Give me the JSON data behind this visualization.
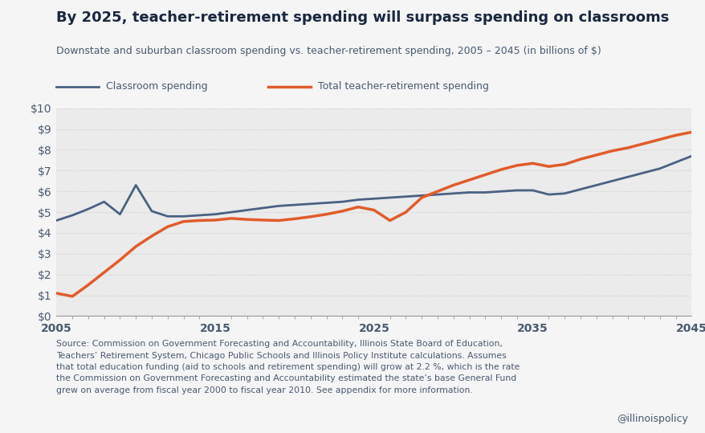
{
  "title": "By 2025, teacher-retirement spending will surpass spending on classrooms",
  "subtitle": "Downstate and suburban classroom spending vs. teacher-retirement spending, 2005 – 2045 (in billions of $)",
  "source_text": "Source: Commission on Government Forecasting and Accountability, Illinois State Board of Education,\nTeachers’ Retirement System, Chicago Public Schools and Illinois Policy Institute calculations. Assumes\nthat total education funding (aid to schools and retirement spending) will grow at 2.2 %, which is the rate\nthe Commission on Government Forecasting and Accountability estimated the state’s base General Fund\ngrew on average from fiscal year 2000 to fiscal year 2010. See appendix for more information.",
  "watermark": "@illinoispolicy",
  "background_color": "#f5f5f5",
  "plot_bg_color": "#ebebeb",
  "classroom_color": "#4a6182",
  "retirement_color": "#e05c2a",
  "classroom_label": "Classroom spending",
  "retirement_label": "Total teacher-retirement spending",
  "title_color": "#1a2740",
  "subtitle_color": "#4a5a70",
  "text_color": "#4a5a70",
  "grid_color": "#cccccc",
  "ylim": [
    0,
    10
  ],
  "xlim": [
    2005,
    2045
  ],
  "yticks": [
    0,
    1,
    2,
    3,
    4,
    5,
    6,
    7,
    8,
    9,
    10
  ],
  "xticks": [
    2005,
    2015,
    2025,
    2035,
    2045
  ],
  "classroom_x": [
    2005,
    2006,
    2007,
    2008,
    2009,
    2010,
    2011,
    2012,
    2013,
    2014,
    2015,
    2016,
    2017,
    2018,
    2019,
    2020,
    2021,
    2022,
    2023,
    2024,
    2025,
    2026,
    2027,
    2028,
    2029,
    2030,
    2031,
    2032,
    2033,
    2034,
    2035,
    2036,
    2037,
    2038,
    2039,
    2040,
    2041,
    2042,
    2043,
    2044,
    2045
  ],
  "classroom_y": [
    4.6,
    4.85,
    5.15,
    5.5,
    4.9,
    6.3,
    5.05,
    4.8,
    4.8,
    4.85,
    4.9,
    5.0,
    5.1,
    5.2,
    5.3,
    5.35,
    5.4,
    5.45,
    5.5,
    5.6,
    5.65,
    5.7,
    5.75,
    5.8,
    5.85,
    5.9,
    5.95,
    5.95,
    6.0,
    6.05,
    6.05,
    5.85,
    5.9,
    6.1,
    6.3,
    6.5,
    6.7,
    6.9,
    7.1,
    7.4,
    7.7
  ],
  "retirement_x": [
    2005,
    2006,
    2007,
    2008,
    2009,
    2010,
    2011,
    2012,
    2013,
    2014,
    2015,
    2016,
    2017,
    2018,
    2019,
    2020,
    2021,
    2022,
    2023,
    2024,
    2025,
    2026,
    2027,
    2028,
    2029,
    2030,
    2031,
    2032,
    2033,
    2034,
    2035,
    2036,
    2037,
    2038,
    2039,
    2040,
    2041,
    2042,
    2043,
    2044,
    2045
  ],
  "retirement_y": [
    1.1,
    0.95,
    1.5,
    2.1,
    2.7,
    3.35,
    3.85,
    4.3,
    4.55,
    4.6,
    4.62,
    4.7,
    4.65,
    4.62,
    4.6,
    4.68,
    4.78,
    4.9,
    5.05,
    5.25,
    5.1,
    4.6,
    5.0,
    5.7,
    6.0,
    6.3,
    6.55,
    6.8,
    7.05,
    7.25,
    7.35,
    7.2,
    7.3,
    7.55,
    7.75,
    7.95,
    8.1,
    8.3,
    8.5,
    8.7,
    8.85
  ]
}
